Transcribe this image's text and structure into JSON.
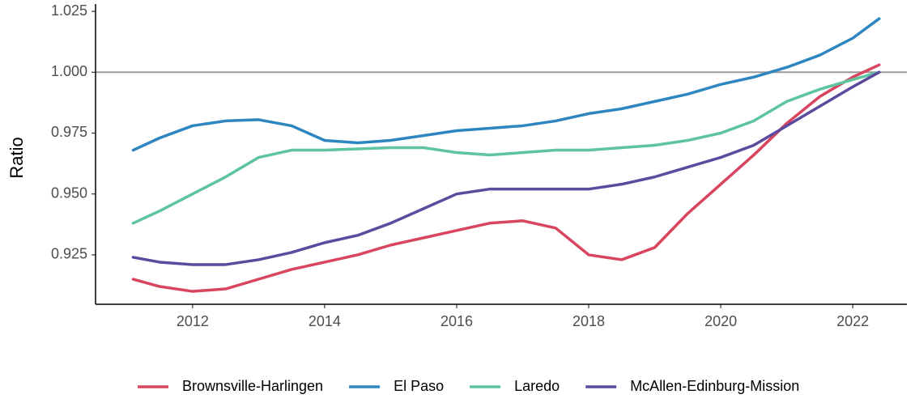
{
  "chart_data": {
    "type": "line",
    "y_label": "Ratio",
    "x": [
      2011.1,
      2011.5,
      2012,
      2012.5,
      2013,
      2013.5,
      2014,
      2014.5,
      2015,
      2015.5,
      2016,
      2016.5,
      2017,
      2017.5,
      2018,
      2018.5,
      2019,
      2019.5,
      2020,
      2020.5,
      2021,
      2021.5,
      2022,
      2022.4
    ],
    "series": [
      {
        "name": "Brownsville-Harlingen",
        "color": "#d9455f",
        "values": [
          0.915,
          0.912,
          0.91,
          0.911,
          0.915,
          0.919,
          0.922,
          0.925,
          0.929,
          0.932,
          0.935,
          0.938,
          0.939,
          0.936,
          0.925,
          0.923,
          0.928,
          0.942,
          0.954,
          0.966,
          0.979,
          0.99,
          0.998,
          1.003
        ]
      },
      {
        "name": "El Paso",
        "color": "#2e86c1",
        "values": [
          0.968,
          0.973,
          0.978,
          0.98,
          0.9805,
          0.978,
          0.972,
          0.971,
          0.972,
          0.974,
          0.976,
          0.977,
          0.978,
          0.98,
          0.983,
          0.985,
          0.988,
          0.991,
          0.995,
          0.998,
          1.002,
          1.007,
          1.014,
          1.022
        ]
      },
      {
        "name": "Laredo",
        "color": "#5ec4a0",
        "values": [
          0.938,
          0.943,
          0.95,
          0.957,
          0.965,
          0.968,
          0.968,
          0.9685,
          0.969,
          0.969,
          0.967,
          0.966,
          0.967,
          0.968,
          0.968,
          0.969,
          0.97,
          0.972,
          0.975,
          0.98,
          0.988,
          0.993,
          0.997,
          1.0
        ]
      },
      {
        "name": "McAllen-Edinburg-Mission",
        "color": "#5b4a9e",
        "values": [
          0.924,
          0.922,
          0.921,
          0.921,
          0.923,
          0.926,
          0.93,
          0.933,
          0.938,
          0.944,
          0.95,
          0.952,
          0.952,
          0.952,
          0.952,
          0.954,
          0.957,
          0.961,
          0.965,
          0.97,
          0.978,
          0.986,
          0.994,
          1.0
        ]
      }
    ],
    "hline": 1,
    "xlim": [
      2010.53,
      2022.82
    ],
    "xticks": [
      2012,
      2014,
      2016,
      2018,
      2020,
      2022
    ],
    "ylim": [
      0.9047,
      1.028
    ],
    "yticks": [
      {
        "value": 0.925,
        "label": "0.925"
      },
      {
        "value": 0.95,
        "label": "0.950"
      },
      0.975,
      {
        "value": 1,
        "label": "1.000"
      },
      1.025
    ],
    "legend": "bottom"
  }
}
